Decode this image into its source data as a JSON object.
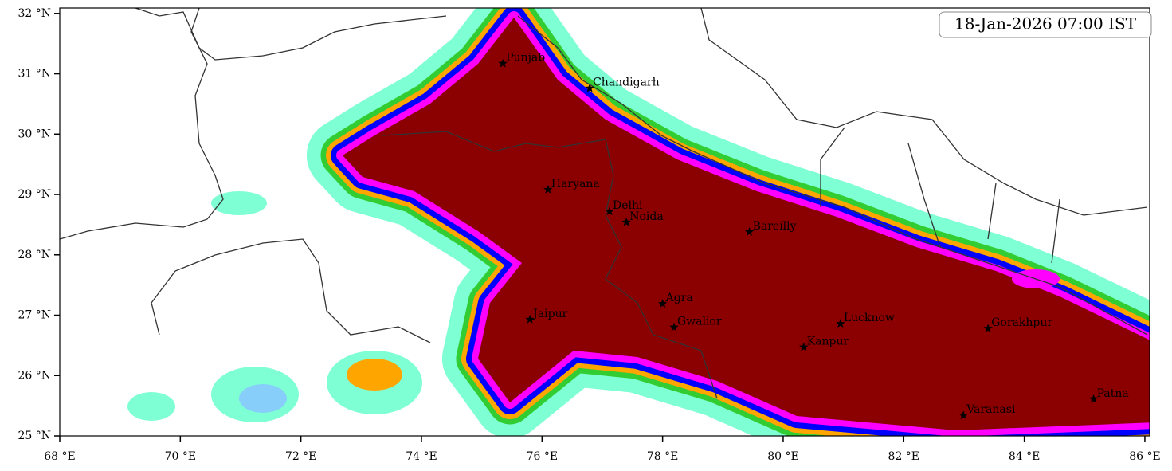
{
  "title": "18-Jan-2026 07:00 IST",
  "xlim": [
    68,
    86.08
  ],
  "ylim": [
    25,
    32.09
  ],
  "xticks": [
    {
      "value": 68,
      "label": "68 °E"
    },
    {
      "value": 70,
      "label": "70 °E"
    },
    {
      "value": 72,
      "label": "72 °E"
    },
    {
      "value": 74,
      "label": "74 °E"
    },
    {
      "value": 76,
      "label": "76 °E"
    },
    {
      "value": 78,
      "label": "78 °E"
    },
    {
      "value": 80,
      "label": "80 °E"
    },
    {
      "value": 82,
      "label": "82 °E"
    },
    {
      "value": 84,
      "label": "84 °E"
    },
    {
      "value": 86,
      "label": "86 °E"
    }
  ],
  "yticks": [
    {
      "value": 25,
      "label": "25 °N"
    },
    {
      "value": 26,
      "label": "26 °N"
    },
    {
      "value": 27,
      "label": "27 °N"
    },
    {
      "value": 28,
      "label": "28 °N"
    },
    {
      "value": 29,
      "label": "29 °N"
    },
    {
      "value": 30,
      "label": "30 °N"
    },
    {
      "value": 31,
      "label": "31 °N"
    },
    {
      "value": 32,
      "label": "32 °N"
    }
  ],
  "cities": [
    {
      "name": "Punjab",
      "lon": 75.35,
      "lat": 31.17
    },
    {
      "name": "Chandigarh",
      "lon": 76.79,
      "lat": 30.76
    },
    {
      "name": "Haryana",
      "lon": 76.1,
      "lat": 29.08
    },
    {
      "name": "Delhi",
      "lon": 77.12,
      "lat": 28.72
    },
    {
      "name": "Noida",
      "lon": 77.4,
      "lat": 28.54
    },
    {
      "name": "Bareilly",
      "lon": 79.44,
      "lat": 28.38
    },
    {
      "name": "Agra",
      "lon": 78.0,
      "lat": 27.19
    },
    {
      "name": "Jaipur",
      "lon": 75.8,
      "lat": 26.93
    },
    {
      "name": "Gwalior",
      "lon": 78.19,
      "lat": 26.8
    },
    {
      "name": "Lucknow",
      "lon": 80.95,
      "lat": 26.86
    },
    {
      "name": "Gorakhpur",
      "lon": 83.4,
      "lat": 26.78
    },
    {
      "name": "Kanpur",
      "lon": 80.34,
      "lat": 26.47
    },
    {
      "name": "Varanasi",
      "lon": 82.99,
      "lat": 25.34
    },
    {
      "name": "Patna",
      "lon": 85.15,
      "lat": 25.61
    }
  ]
}
